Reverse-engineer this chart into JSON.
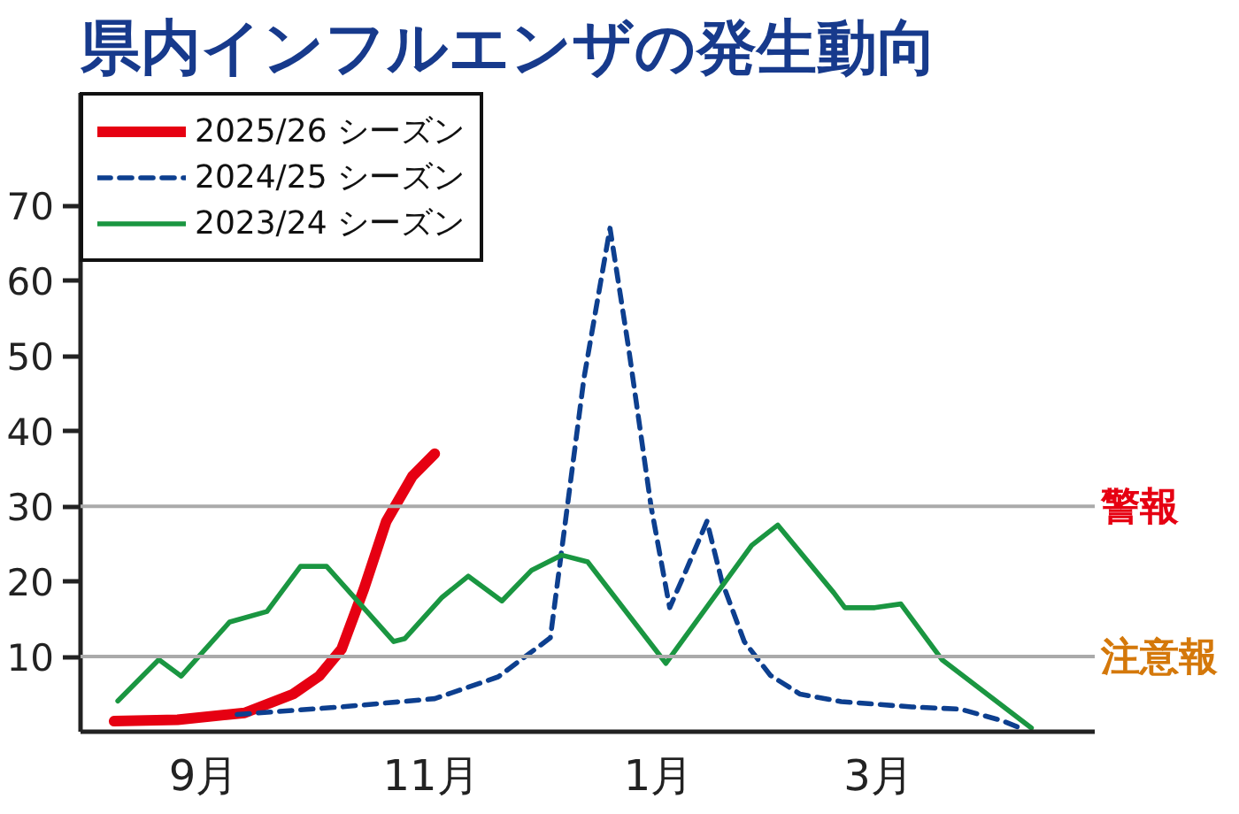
{
  "chart_data": {
    "type": "line",
    "title": "県内インフルエンザの発生動向",
    "xlim": [
      "2025-07-30",
      "2026-04-28"
    ],
    "xticks": [
      {
        "value": "2025-09-01",
        "label": "9月"
      },
      {
        "value": "2025-11-01",
        "label": "11月"
      },
      {
        "value": "2026-01-01",
        "label": "1月"
      },
      {
        "value": "2026-03-01",
        "label": "3月"
      }
    ],
    "ylim": [
      0,
      85
    ],
    "yticks": [
      10,
      20,
      30,
      40,
      50,
      60,
      70
    ],
    "series": [
      {
        "name": "2025/26 シーズン",
        "color": "#e60012",
        "line_style": "solid",
        "x": [
          "2025-08-08",
          "2025-08-25",
          "2025-09-12",
          "2025-09-25",
          "2025-10-02",
          "2025-10-08",
          "2025-10-14",
          "2025-10-20",
          "2025-10-27",
          "2025-11-02"
        ],
        "values": [
          1.4,
          1.6,
          2.5,
          5,
          7.4,
          11,
          19,
          28,
          34,
          37
        ]
      },
      {
        "name": "2024/25 シーズン",
        "color": "#0d3f8f",
        "line_style": "dashed",
        "x": [
          "2025-09-10",
          "2025-10-08",
          "2025-11-02",
          "2025-11-19",
          "2025-12-03",
          "2025-12-06",
          "2025-12-12",
          "2025-12-19",
          "2025-12-24",
          "2025-12-30",
          "2026-01-04",
          "2026-01-08",
          "2026-01-14",
          "2026-01-18",
          "2026-01-24",
          "2026-01-31",
          "2026-02-08",
          "2026-02-19",
          "2026-03-10",
          "2026-03-23",
          "2026-04-03",
          "2026-04-09"
        ],
        "values": [
          2.3,
          3.3,
          4.4,
          7.3,
          12.5,
          24,
          47,
          67,
          51,
          30,
          16.5,
          21,
          28,
          20,
          12,
          7.5,
          5,
          4,
          3.3,
          3,
          1.5,
          0.3
        ]
      },
      {
        "name": "2023/24 シーズン",
        "color": "#1a9641",
        "line_style": "solid",
        "x": [
          "2025-08-09",
          "2025-08-20",
          "2025-08-26",
          "2025-09-08",
          "2025-09-18",
          "2025-09-27",
          "2025-10-04",
          "2025-10-22",
          "2025-10-25",
          "2025-11-04",
          "2025-11-11",
          "2025-11-20",
          "2025-11-28",
          "2025-12-06",
          "2025-12-13",
          "2026-01-03",
          "2026-01-26",
          "2026-02-02",
          "2026-02-17",
          "2026-02-20",
          "2026-02-28",
          "2026-03-07",
          "2026-03-18",
          "2026-04-11"
        ],
        "values": [
          4.1,
          9.6,
          7.4,
          14.6,
          16,
          22,
          22,
          12,
          12.4,
          17.9,
          20.7,
          17.4,
          21.5,
          23.5,
          22.6,
          9.1,
          24.8,
          27.5,
          18.5,
          16.5,
          16.5,
          17,
          9.6,
          0.5
        ]
      }
    ],
    "ref_lines": [
      {
        "axis": "y",
        "value": 30,
        "label": "警報",
        "color": "#aaaaaa"
      },
      {
        "axis": "y",
        "value": 10,
        "label": "注意報",
        "color": "#aaaaaa"
      }
    ],
    "legend": "top left",
    "grid": false,
    "marker": "none"
  }
}
